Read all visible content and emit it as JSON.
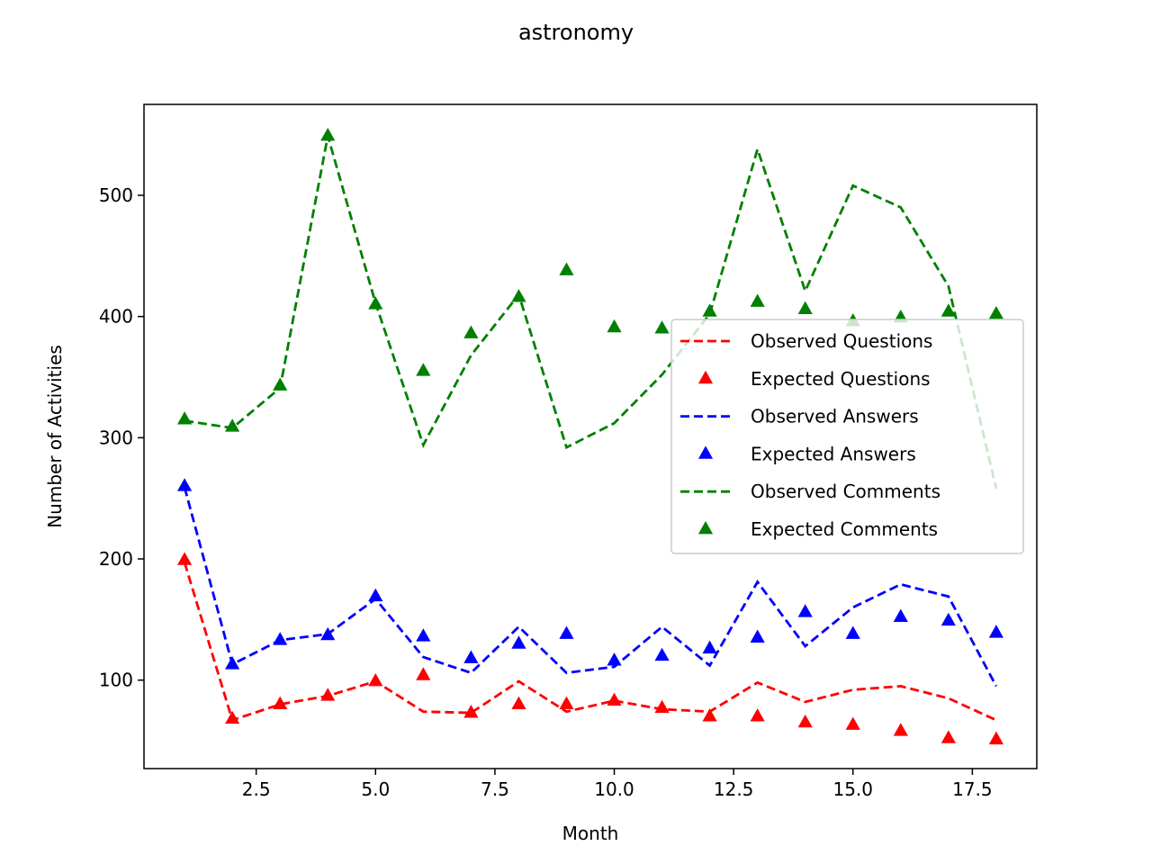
{
  "chart_data": {
    "type": "line",
    "title": "astronomy",
    "xlabel": "Month",
    "ylabel": "Number of Activities",
    "xlim": [
      0.15,
      18.85
    ],
    "ylim": [
      27,
      575
    ],
    "xticks": [
      2.5,
      5.0,
      7.5,
      10.0,
      12.5,
      15.0,
      17.5
    ],
    "xtick_labels": [
      "2.5",
      "5.0",
      "7.5",
      "10.0",
      "12.5",
      "15.0",
      "17.5"
    ],
    "yticks": [
      100,
      200,
      300,
      400,
      500
    ],
    "ytick_labels": [
      "100",
      "200",
      "300",
      "400",
      "500"
    ],
    "grid": false,
    "legend_position": "center-right",
    "x": [
      1,
      2,
      3,
      4,
      5,
      6,
      7,
      8,
      9,
      10,
      11,
      12,
      13,
      14,
      15,
      16,
      17,
      18
    ],
    "series": [
      {
        "name": "Observed Questions",
        "style": "dashed",
        "color": "#ff0000",
        "values": [
          197,
          67,
          80,
          87,
          99,
          74,
          73,
          99,
          74,
          83,
          76,
          74,
          98,
          82,
          92,
          95,
          85,
          67
        ]
      },
      {
        "name": "Expected Questions",
        "style": "triangle",
        "color": "#ff0000",
        "values": [
          199,
          68,
          80,
          87,
          99,
          104,
          73,
          80,
          80,
          83,
          77,
          70,
          70,
          65,
          63,
          58,
          52,
          51
        ]
      },
      {
        "name": "Observed Answers",
        "style": "dashed",
        "color": "#0000ff",
        "values": [
          259,
          113,
          133,
          138,
          167,
          119,
          106,
          144,
          106,
          111,
          144,
          112,
          181,
          128,
          160,
          179,
          169,
          95
        ]
      },
      {
        "name": "Expected Answers",
        "style": "triangle",
        "color": "#0000ff",
        "values": [
          260,
          113,
          133,
          137,
          169,
          136,
          118,
          130,
          138,
          116,
          120,
          126,
          135,
          156,
          138,
          152,
          149,
          139
        ]
      },
      {
        "name": "Observed Comments",
        "style": "dashed",
        "color": "#008000",
        "values": [
          314,
          308,
          341,
          549,
          411,
          294,
          368,
          418,
          292,
          312,
          352,
          402,
          538,
          421,
          508,
          490,
          425,
          258
        ]
      },
      {
        "name": "Expected Comments",
        "style": "triangle",
        "color": "#008000",
        "values": [
          315,
          309,
          343,
          549,
          410,
          355,
          386,
          416,
          438,
          391,
          390,
          404,
          412,
          406,
          396,
          399,
          404,
          402
        ]
      }
    ]
  }
}
